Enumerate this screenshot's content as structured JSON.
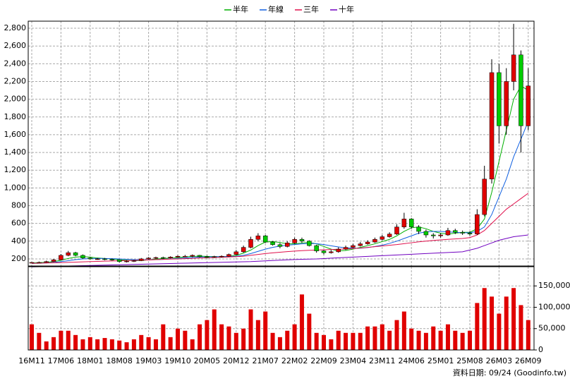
{
  "chart_data": [
    {
      "type": "candlestick",
      "categories": [
        "16M11",
        null,
        null,
        null,
        "17M06",
        null,
        null,
        null,
        "18M01",
        null,
        null,
        null,
        "18M08",
        null,
        null,
        null,
        "19M03",
        null,
        null,
        null,
        "19M10",
        null,
        null,
        null,
        "20M05",
        null,
        null,
        null,
        "20M12",
        null,
        null,
        null,
        "21M07",
        null,
        null,
        null,
        "22M02",
        null,
        null,
        null,
        "22M09",
        null,
        null,
        null,
        "23M04",
        null,
        null,
        null,
        "23M11",
        null,
        null,
        null,
        "24M06",
        null,
        null,
        null,
        "25M01",
        null,
        null,
        null,
        "25M08",
        null,
        null,
        null,
        "26M03",
        null,
        null,
        null,
        "26M09"
      ],
      "open": [
        155,
        160,
        160,
        170,
        190,
        240,
        270,
        240,
        210,
        200,
        200,
        195,
        190,
        170,
        175,
        180,
        200,
        210,
        215,
        210,
        220,
        230,
        230,
        240,
        225,
        220,
        225,
        230,
        250,
        280,
        330,
        420,
        460,
        390,
        360,
        340,
        380,
        420,
        400,
        350,
        290,
        270,
        280,
        310,
        330,
        350,
        370,
        390,
        420,
        450,
        480,
        560,
        650,
        560,
        510,
        470,
        460,
        470,
        520,
        500,
        490,
        480,
        700,
        1100,
        2300,
        1700,
        2200,
        2500,
        1700
      ],
      "high": [
        165,
        170,
        180,
        200,
        255,
        290,
        280,
        250,
        220,
        210,
        210,
        205,
        195,
        185,
        190,
        210,
        220,
        225,
        225,
        230,
        240,
        245,
        250,
        245,
        235,
        235,
        240,
        260,
        300,
        350,
        450,
        490,
        470,
        400,
        380,
        400,
        440,
        440,
        410,
        360,
        300,
        300,
        330,
        350,
        370,
        390,
        410,
        440,
        470,
        500,
        590,
        720,
        660,
        580,
        530,
        490,
        490,
        550,
        540,
        520,
        510,
        760,
        1250,
        2450,
        2400,
        2350,
        2850,
        2550,
        2350
      ],
      "low": [
        150,
        150,
        155,
        165,
        185,
        230,
        230,
        200,
        190,
        190,
        185,
        180,
        160,
        160,
        165,
        175,
        195,
        200,
        200,
        205,
        215,
        220,
        220,
        215,
        210,
        210,
        215,
        225,
        245,
        270,
        320,
        400,
        380,
        350,
        320,
        330,
        370,
        380,
        340,
        270,
        250,
        260,
        270,
        300,
        320,
        340,
        360,
        380,
        410,
        440,
        470,
        540,
        540,
        480,
        440,
        430,
        440,
        460,
        480,
        470,
        460,
        470,
        680,
        1050,
        1500,
        1600,
        2100,
        1400,
        1650
      ],
      "close": [
        160,
        160,
        170,
        190,
        240,
        270,
        240,
        210,
        200,
        200,
        195,
        190,
        170,
        175,
        180,
        200,
        210,
        215,
        210,
        220,
        230,
        230,
        240,
        225,
        220,
        225,
        230,
        250,
        280,
        330,
        420,
        460,
        390,
        360,
        340,
        380,
        420,
        400,
        350,
        290,
        270,
        280,
        310,
        330,
        350,
        370,
        390,
        420,
        450,
        480,
        560,
        650,
        560,
        510,
        470,
        460,
        470,
        520,
        500,
        490,
        480,
        700,
        1100,
        2300,
        1700,
        2200,
        2500,
        1700,
        2150
      ],
      "up_color": "#e00000",
      "down_color": "#00cc00",
      "series": [
        {
          "name": "半年",
          "color": "#00b000",
          "values": [
            155,
            158,
            162,
            170,
            185,
            205,
            220,
            225,
            220,
            210,
            205,
            200,
            190,
            185,
            180,
            182,
            190,
            198,
            205,
            210,
            215,
            222,
            228,
            230,
            228,
            225,
            225,
            228,
            240,
            265,
            300,
            350,
            390,
            395,
            385,
            370,
            370,
            380,
            385,
            370,
            340,
            310,
            290,
            295,
            310,
            330,
            350,
            370,
            395,
            420,
            460,
            510,
            550,
            560,
            540,
            510,
            490,
            480,
            490,
            500,
            500,
            540,
            650,
            950,
            1300,
            1650,
            2000,
            2150,
            2100
          ]
        },
        {
          "name": "年線",
          "color": "#1060e0",
          "values": [
            150,
            152,
            155,
            160,
            170,
            180,
            192,
            200,
            205,
            205,
            205,
            203,
            200,
            196,
            192,
            190,
            190,
            192,
            195,
            200,
            205,
            210,
            215,
            220,
            222,
            224,
            225,
            226,
            230,
            240,
            260,
            285,
            310,
            330,
            345,
            355,
            362,
            370,
            375,
            372,
            362,
            348,
            335,
            325,
            320,
            320,
            328,
            340,
            355,
            375,
            400,
            430,
            460,
            490,
            505,
            510,
            510,
            505,
            500,
            495,
            495,
            510,
            560,
            700,
            900,
            1100,
            1350,
            1550,
            1750
          ]
        },
        {
          "name": "三年",
          "color": "#e0104c",
          "values": [
            150,
            152,
            154,
            156,
            158,
            161,
            164,
            167,
            170,
            172,
            175,
            177,
            179,
            181,
            183,
            186,
            189,
            192,
            195,
            198,
            200,
            203,
            206,
            209,
            212,
            215,
            218,
            221,
            225,
            230,
            240,
            250,
            260,
            268,
            275,
            282,
            288,
            293,
            297,
            300,
            303,
            306,
            309,
            312,
            316,
            322,
            330,
            338,
            346,
            354,
            362,
            372,
            382,
            392,
            400,
            408,
            414,
            420,
            425,
            430,
            440,
            470,
            520,
            600,
            680,
            760,
            820,
            880,
            940
          ]
        },
        {
          "name": "十年",
          "color": "#7000c0",
          "values": [
            110,
            112,
            114,
            116,
            118,
            120,
            122,
            124,
            126,
            128,
            130,
            132,
            134,
            136,
            138,
            140,
            142,
            144,
            146,
            148,
            150,
            152,
            154,
            156,
            158,
            160,
            162,
            164,
            166,
            168,
            170,
            174,
            178,
            182,
            186,
            190,
            193,
            196,
            198,
            200,
            204,
            208,
            212,
            216,
            220,
            224,
            228,
            232,
            236,
            240,
            244,
            248,
            252,
            256,
            260,
            264,
            268,
            272,
            276,
            280,
            300,
            320,
            350,
            380,
            410,
            430,
            450,
            460,
            470
          ]
        }
      ],
      "ylim": [
        120,
        2880
      ],
      "yticks": [
        200,
        400,
        600,
        800,
        {
          "value": 1000,
          "label": "1,000"
        },
        {
          "value": 1200,
          "label": "1,200"
        },
        {
          "value": 1400,
          "label": "1,400"
        },
        {
          "value": 1600,
          "label": "1,600"
        },
        {
          "value": 1800,
          "label": "1,800"
        },
        {
          "value": 2000,
          "label": "2,000"
        },
        {
          "value": 2200,
          "label": "2,200"
        },
        {
          "value": 2400,
          "label": "2,400"
        },
        {
          "value": 2600,
          "label": "2,600"
        },
        {
          "value": 2800,
          "label": "2,800"
        }
      ],
      "grid": true
    },
    {
      "type": "bar",
      "values": [
        60000,
        40000,
        20000,
        30000,
        45000,
        45000,
        35000,
        25000,
        30000,
        25000,
        28000,
        25000,
        22000,
        18000,
        25000,
        35000,
        30000,
        25000,
        60000,
        30000,
        50000,
        45000,
        25000,
        60000,
        70000,
        95000,
        60000,
        55000,
        40000,
        50000,
        95000,
        70000,
        90000,
        40000,
        30000,
        45000,
        60000,
        130000,
        85000,
        40000,
        35000,
        25000,
        45000,
        40000,
        40000,
        40000,
        55000,
        55000,
        60000,
        45000,
        70000,
        90000,
        50000,
        45000,
        40000,
        55000,
        45000,
        60000,
        45000,
        40000,
        45000,
        110000,
        145000,
        125000,
        85000,
        125000,
        145000,
        105000,
        70000
      ],
      "color": "#e00000",
      "ylim": [
        0,
        195000
      ],
      "yticks": [
        0,
        {
          "value": 50000,
          "label": "50,000"
        },
        {
          "value": 100000,
          "label": "100,000"
        },
        {
          "value": 150000,
          "label": "150,000"
        }
      ],
      "grid": true,
      "note": "資料日期: 09/24  (Goodinfo.tw)"
    }
  ]
}
